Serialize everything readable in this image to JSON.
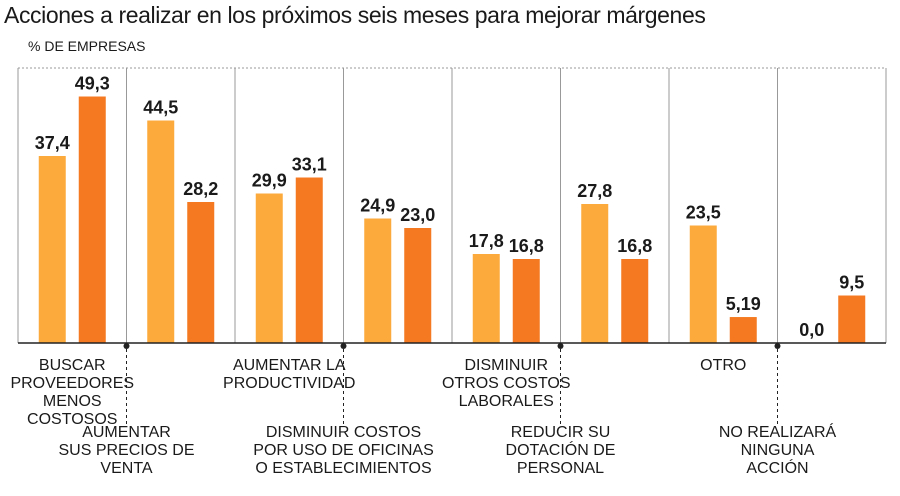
{
  "header": {
    "title": "Acciones a realizar en los próximos seis meses para mejorar márgenes",
    "subtitle": "% DE EMPRESAS"
  },
  "colors": {
    "series1": "#FDAA3D",
    "series2": "#F47920",
    "grid": "#999999",
    "baseline": "#222222"
  },
  "chart_data": {
    "type": "bar",
    "title": "Acciones a realizar en los próximos seis meses para mejorar márgenes",
    "ylabel": "% DE EMPRESAS",
    "ylim": [
      0,
      55
    ],
    "categories": [
      "BUSCAR PROVEEDORES MENOS COSTOSOS",
      "AUMENTAR SUS PRECIOS DE VENTA",
      "AUMENTAR LA PRODUCTIVIDAD",
      "DISMINUIR COSTOS POR USO DE OFICINAS O ESTABLECIMIENTOS",
      "DISMINUIR OTROS COSTOS LABORALES",
      "REDUCIR SU DOTACIÓN DE PERSONAL",
      "OTRO",
      "NO REALIZARÁ NINGUNA ACCIÓN"
    ],
    "category_lines": [
      [
        "BUSCAR",
        "PROVEEDORES",
        "MENOS",
        "COSTOSOS"
      ],
      [
        "AUMENTAR",
        "SUS PRECIOS DE",
        "VENTA"
      ],
      [
        "AUMENTAR LA",
        "PRODUCTIVIDAD"
      ],
      [
        "DISMINUIR COSTOS",
        "POR USO DE OFICINAS",
        "O ESTABLECIMIENTOS"
      ],
      [
        "DISMINUIR",
        "OTROS COSTOS",
        "LABORALES"
      ],
      [
        "REDUCIR SU",
        "DOTACIÓN DE",
        "PERSONAL"
      ],
      [
        "OTRO"
      ],
      [
        "NO REALIZARÁ",
        "NINGUNA",
        "ACCIÓN"
      ]
    ],
    "series": [
      {
        "values": [
          37.4,
          44.5,
          29.9,
          24.9,
          17.8,
          27.8,
          23.5,
          0.0
        ],
        "labels": [
          "37,4",
          "44,5",
          "29,9",
          "24,9",
          "17,8",
          "27,8",
          "23,5",
          "0,0"
        ]
      },
      {
        "values": [
          49.3,
          28.2,
          33.1,
          23.0,
          16.8,
          16.8,
          5.19,
          9.5
        ],
        "labels": [
          "49,3",
          "28,2",
          "33,1",
          "23,0",
          "16,8",
          "16,8",
          "5,19",
          "9,5"
        ]
      }
    ],
    "grid": true
  }
}
